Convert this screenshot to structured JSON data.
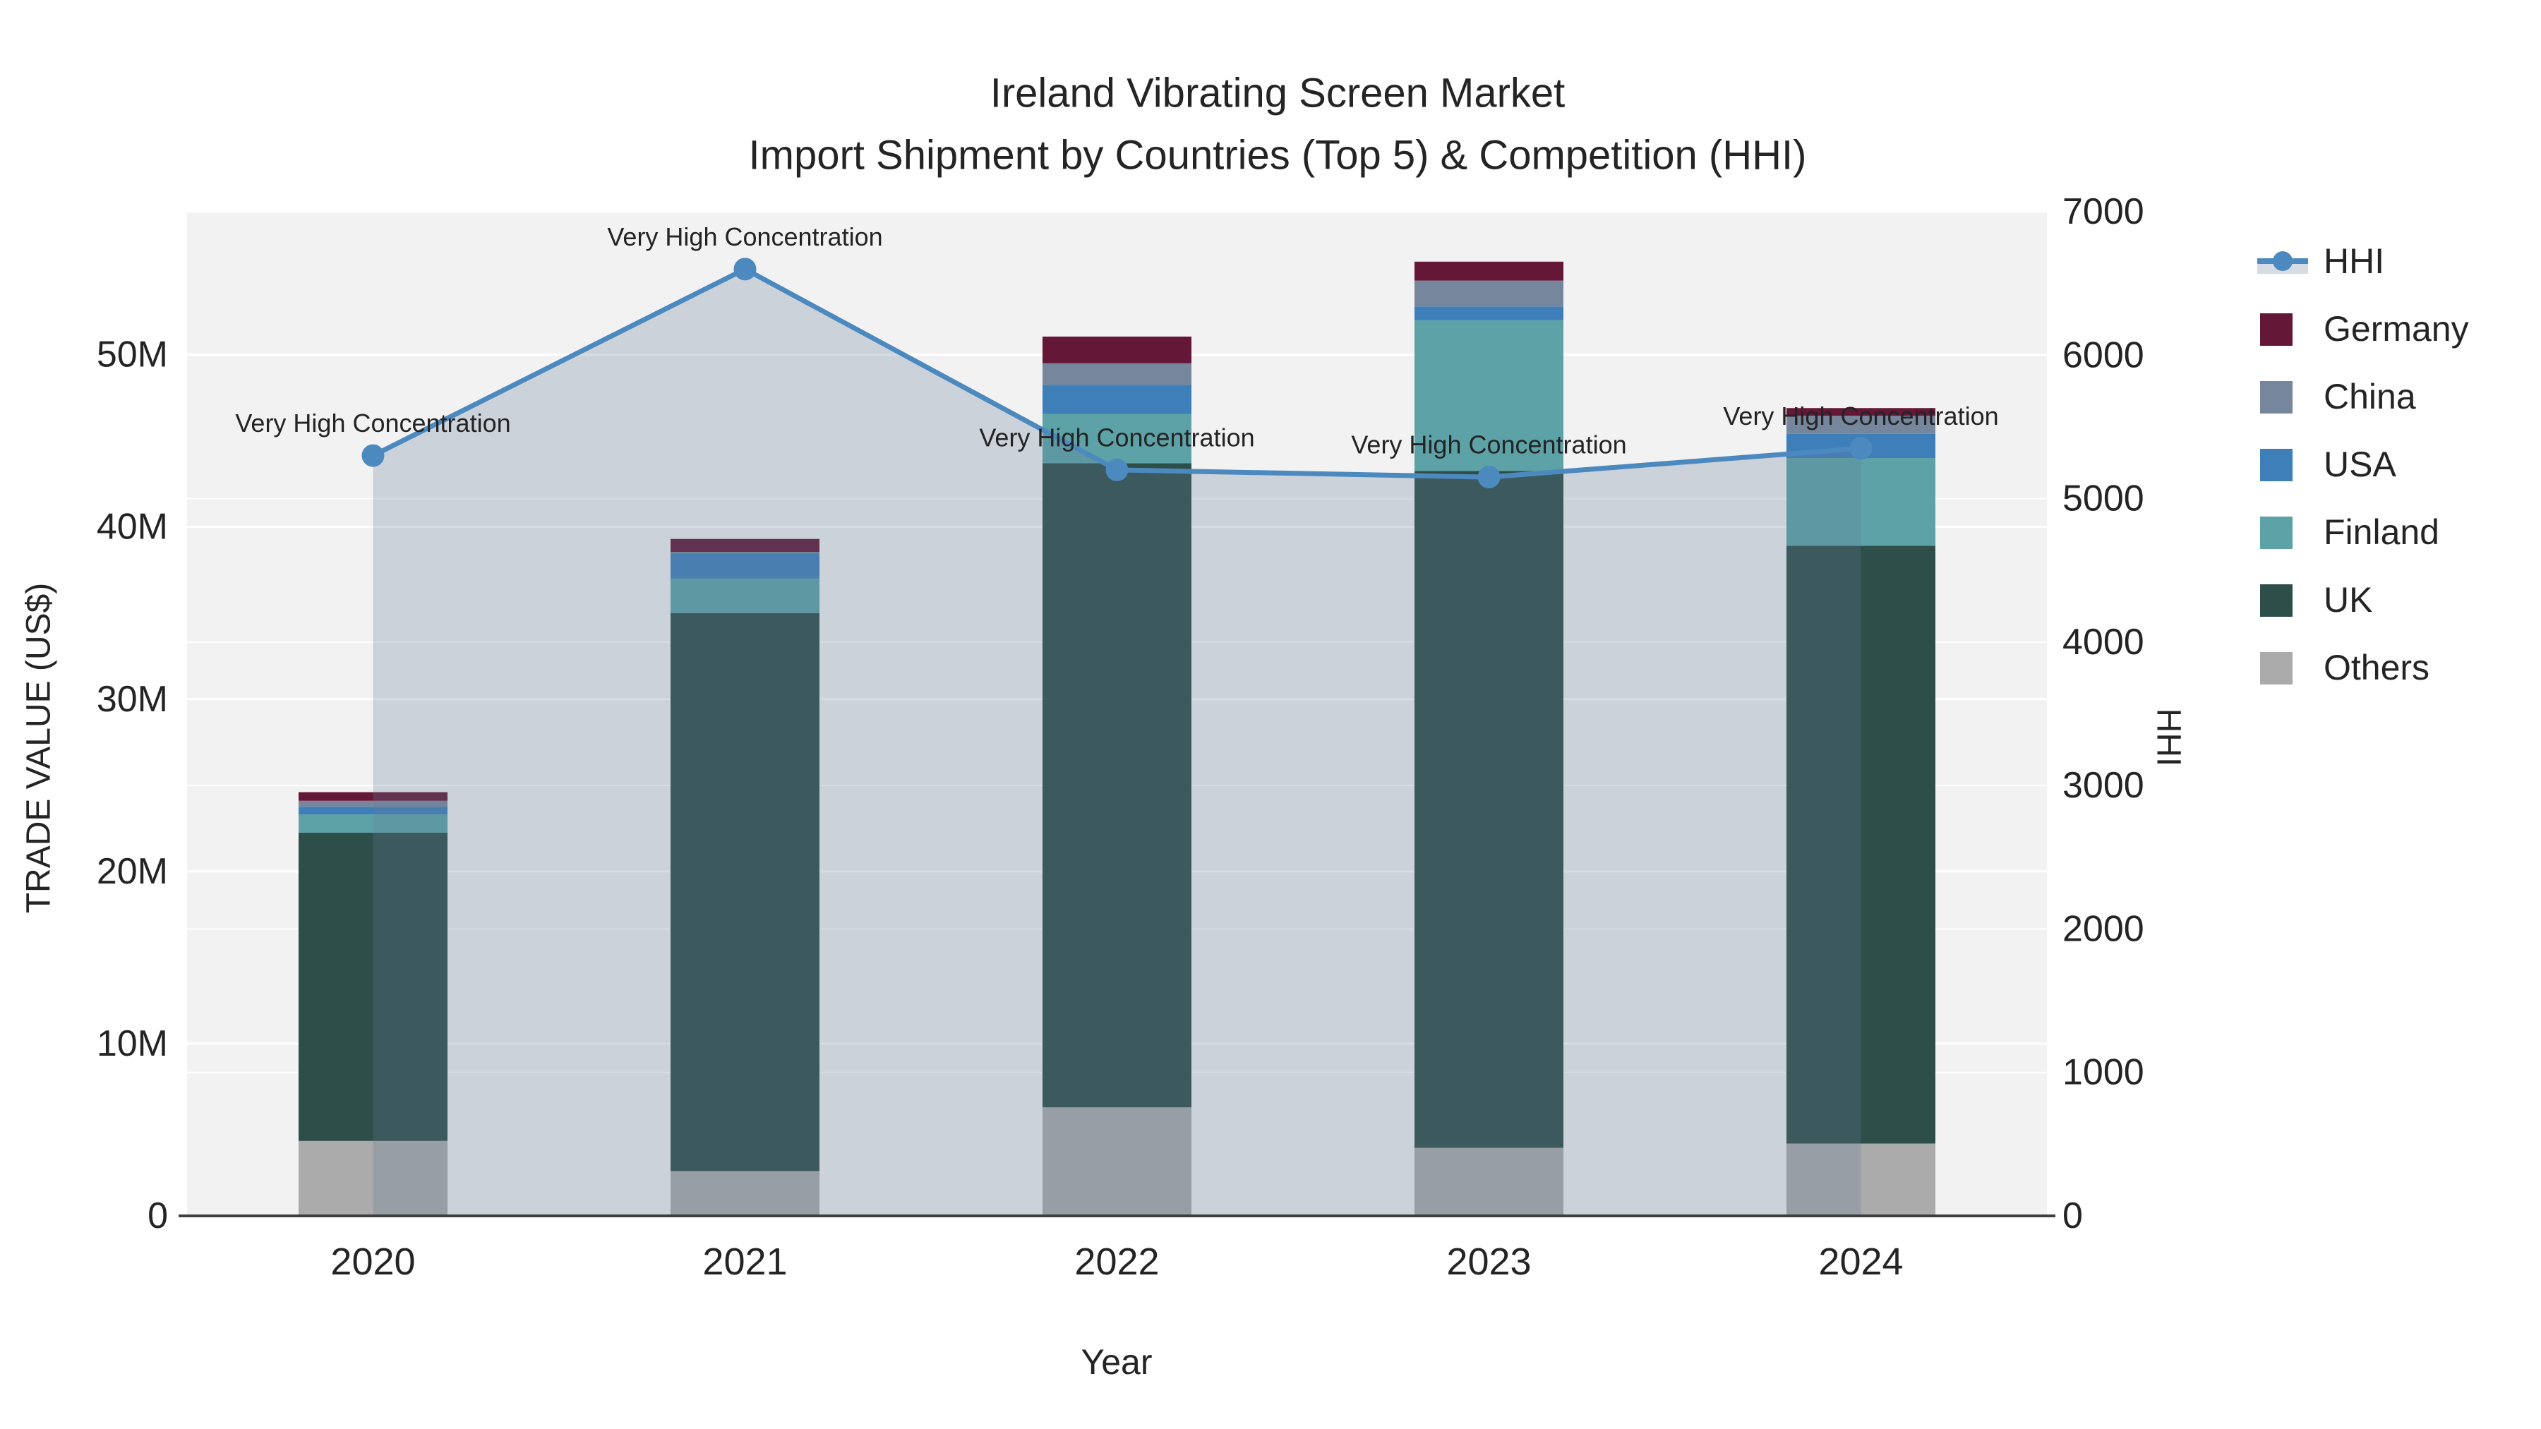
{
  "chart_data": {
    "type": "bar",
    "combo": "stacked-bar + line(secondary-axis) + area-fill",
    "title": "Ireland Vibrating Screen Market",
    "subtitle": "Import Shipment by Countries (Top 5) & Competition (HHI)",
    "xlabel": "Year",
    "ylabel_left": "TRADE VALUE (US$)",
    "ylabel_right": "HHI",
    "categories": [
      "2020",
      "2021",
      "2022",
      "2023",
      "2024"
    ],
    "bar_value_unit": "million US$",
    "series": [
      {
        "name": "Others",
        "color": "#ABABAB",
        "values": [
          4.35,
          2.6,
          6.3,
          3.95,
          4.2
        ]
      },
      {
        "name": "UK",
        "color": "#2E4E49",
        "values": [
          17.9,
          32.4,
          37.4,
          39.3,
          34.7
        ]
      },
      {
        "name": "Finland",
        "color": "#5DA2A6",
        "values": [
          1.05,
          2.0,
          2.85,
          8.75,
          5.1
        ]
      },
      {
        "name": "USA",
        "color": "#3E7EB9",
        "values": [
          0.45,
          1.45,
          1.7,
          0.8,
          1.4
        ]
      },
      {
        "name": "China",
        "color": "#76879D",
        "values": [
          0.35,
          0.1,
          1.25,
          1.5,
          1.05
        ]
      },
      {
        "name": "Germany",
        "color": "#641737",
        "values": [
          0.5,
          0.75,
          1.55,
          1.1,
          0.45
        ]
      }
    ],
    "bar_totals": [
      24.6,
      39.3,
      51.05,
      55.4,
      46.9
    ],
    "line_series": {
      "name": "HHI",
      "color": "#4C89BF",
      "fill_color": "rgba(98,124,153,0.27)",
      "values": [
        5300,
        6600,
        5200,
        5150,
        5350
      ],
      "axis": "right"
    },
    "annotation_text": "Very High Concentration",
    "left_axis": {
      "tick_labels": [
        "0",
        "10M",
        "20M",
        "30M",
        "40M",
        "50M"
      ],
      "tick_values_m": [
        0,
        10,
        20,
        30,
        40,
        50
      ],
      "max_m": 58.3
    },
    "right_axis": {
      "tick_labels": [
        "0",
        "1000",
        "2000",
        "3000",
        "4000",
        "5000",
        "6000",
        "7000"
      ],
      "tick_values": [
        0,
        1000,
        2000,
        3000,
        4000,
        5000,
        6000,
        7000
      ],
      "max": 7000
    },
    "legend": [
      {
        "label": "HHI",
        "type": "line",
        "color": "#4C89BF"
      },
      {
        "label": "Germany",
        "type": "swatch",
        "color": "#641737"
      },
      {
        "label": "China",
        "type": "swatch",
        "color": "#76879D"
      },
      {
        "label": "USA",
        "type": "swatch",
        "color": "#3E7EB9"
      },
      {
        "label": "Finland",
        "type": "swatch",
        "color": "#5DA2A6"
      },
      {
        "label": "UK",
        "type": "swatch",
        "color": "#2E4E49"
      },
      {
        "label": "Others",
        "type": "swatch",
        "color": "#ABABAB"
      }
    ],
    "legend_position": "right",
    "grid_on": true,
    "plot_bg": "#F2F2F2",
    "grid_color": "#FFFFFF",
    "zeroline_color": "#3F3F3F",
    "text_color": "#242424"
  }
}
